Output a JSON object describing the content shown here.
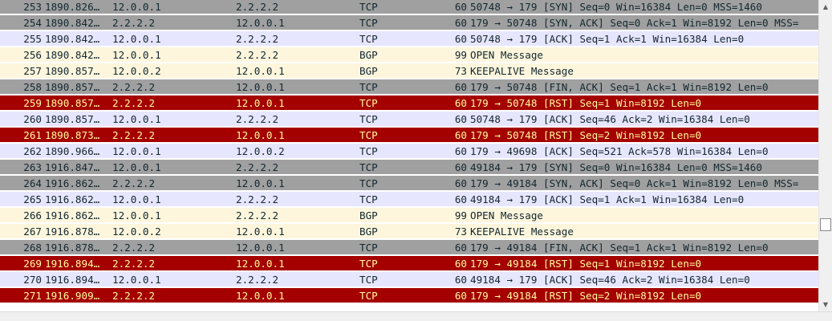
{
  "packet_list": {
    "rows": [
      {
        "no": "253",
        "time": "1890.826…",
        "src": "12.0.0.1",
        "dst": "2.2.2.2",
        "proto": "TCP",
        "len": "60",
        "info": "50748 → 179 [SYN] Seq=0 Win=16384 Len=0 MSS=1460",
        "bg": "#a0a0a0",
        "fg": "#12272e"
      },
      {
        "no": "254",
        "time": "1890.842…",
        "src": "2.2.2.2",
        "dst": "12.0.0.1",
        "proto": "TCP",
        "len": "60",
        "info": "179 → 50748 [SYN, ACK] Seq=0 Ack=1 Win=8192 Len=0 MSS=",
        "bg": "#a0a0a0",
        "fg": "#12272e"
      },
      {
        "no": "255",
        "time": "1890.842…",
        "src": "12.0.0.1",
        "dst": "2.2.2.2",
        "proto": "TCP",
        "len": "60",
        "info": "50748 → 179 [ACK] Seq=1 Ack=1 Win=16384 Len=0",
        "bg": "#e7e6ff",
        "fg": "#12272e"
      },
      {
        "no": "256",
        "time": "1890.842…",
        "src": "12.0.0.1",
        "dst": "2.2.2.2",
        "proto": "BGP",
        "len": "99",
        "info": "OPEN Message",
        "bg": "#fdf6dd",
        "fg": "#12272e"
      },
      {
        "no": "257",
        "time": "1890.857…",
        "src": "12.0.0.2",
        "dst": "12.0.0.1",
        "proto": "BGP",
        "len": "73",
        "info": "KEEPALIVE Message",
        "bg": "#fdf6dd",
        "fg": "#12272e"
      },
      {
        "no": "258",
        "time": "1890.857…",
        "src": "2.2.2.2",
        "dst": "12.0.0.1",
        "proto": "TCP",
        "len": "60",
        "info": "179 → 50748 [FIN, ACK] Seq=1 Ack=1 Win=8192 Len=0",
        "bg": "#a0a0a0",
        "fg": "#12272e"
      },
      {
        "no": "259",
        "time": "1890.857…",
        "src": "2.2.2.2",
        "dst": "12.0.0.1",
        "proto": "TCP",
        "len": "60",
        "info": "179 → 50748 [RST] Seq=1 Win=8192 Len=0",
        "bg": "#a40000",
        "fg": "#fffc9c"
      },
      {
        "no": "260",
        "time": "1890.857…",
        "src": "12.0.0.1",
        "dst": "2.2.2.2",
        "proto": "TCP",
        "len": "60",
        "info": "50748 → 179 [ACK] Seq=46 Ack=2 Win=16384 Len=0",
        "bg": "#e7e6ff",
        "fg": "#12272e"
      },
      {
        "no": "261",
        "time": "1890.873…",
        "src": "2.2.2.2",
        "dst": "12.0.0.1",
        "proto": "TCP",
        "len": "60",
        "info": "179 → 50748 [RST] Seq=2 Win=8192 Len=0",
        "bg": "#a40000",
        "fg": "#fffc9c"
      },
      {
        "no": "262",
        "time": "1890.966…",
        "src": "12.0.0.1",
        "dst": "12.0.0.2",
        "proto": "TCP",
        "len": "60",
        "info": "179 → 49698 [ACK] Seq=521 Ack=578 Win=16384 Len=0",
        "bg": "#e7e6ff",
        "fg": "#12272e"
      },
      {
        "no": "263",
        "time": "1916.847…",
        "src": "12.0.0.1",
        "dst": "2.2.2.2",
        "proto": "TCP",
        "len": "60",
        "info": "49184 → 179 [SYN] Seq=0 Win=16384 Len=0 MSS=1460",
        "bg": "#a0a0a0",
        "fg": "#12272e"
      },
      {
        "no": "264",
        "time": "1916.862…",
        "src": "2.2.2.2",
        "dst": "12.0.0.1",
        "proto": "TCP",
        "len": "60",
        "info": "179 → 49184 [SYN, ACK] Seq=0 Ack=1 Win=8192 Len=0 MSS=",
        "bg": "#a0a0a0",
        "fg": "#12272e"
      },
      {
        "no": "265",
        "time": "1916.862…",
        "src": "12.0.0.1",
        "dst": "2.2.2.2",
        "proto": "TCP",
        "len": "60",
        "info": "49184 → 179 [ACK] Seq=1 Ack=1 Win=16384 Len=0",
        "bg": "#e7e6ff",
        "fg": "#12272e"
      },
      {
        "no": "266",
        "time": "1916.862…",
        "src": "12.0.0.1",
        "dst": "2.2.2.2",
        "proto": "BGP",
        "len": "99",
        "info": "OPEN Message",
        "bg": "#fdf6dd",
        "fg": "#12272e"
      },
      {
        "no": "267",
        "time": "1916.878…",
        "src": "12.0.0.2",
        "dst": "12.0.0.1",
        "proto": "BGP",
        "len": "73",
        "info": "KEEPALIVE Message",
        "bg": "#fdf6dd",
        "fg": "#12272e"
      },
      {
        "no": "268",
        "time": "1916.878…",
        "src": "2.2.2.2",
        "dst": "12.0.0.1",
        "proto": "TCP",
        "len": "60",
        "info": "179 → 49184 [FIN, ACK] Seq=1 Ack=1 Win=8192 Len=0",
        "bg": "#a0a0a0",
        "fg": "#12272e"
      },
      {
        "no": "269",
        "time": "1916.894…",
        "src": "2.2.2.2",
        "dst": "12.0.0.1",
        "proto": "TCP",
        "len": "60",
        "info": "179 → 49184 [RST] Seq=1 Win=8192 Len=0",
        "bg": "#a40000",
        "fg": "#fffc9c"
      },
      {
        "no": "270",
        "time": "1916.894…",
        "src": "12.0.0.1",
        "dst": "2.2.2.2",
        "proto": "TCP",
        "len": "60",
        "info": "49184 → 179 [ACK] Seq=46 Ack=2 Win=16384 Len=0",
        "bg": "#e7e6ff",
        "fg": "#12272e"
      },
      {
        "no": "271",
        "time": "1916.909…",
        "src": "2.2.2.2",
        "dst": "12.0.0.1",
        "proto": "TCP",
        "len": "60",
        "info": "179 → 49184 [RST] Seq=2 Win=8192 Len=0",
        "bg": "#a40000",
        "fg": "#fffc9c"
      }
    ]
  },
  "scrollbar": {
    "up_icon": "▲",
    "down_icon": "▼"
  }
}
